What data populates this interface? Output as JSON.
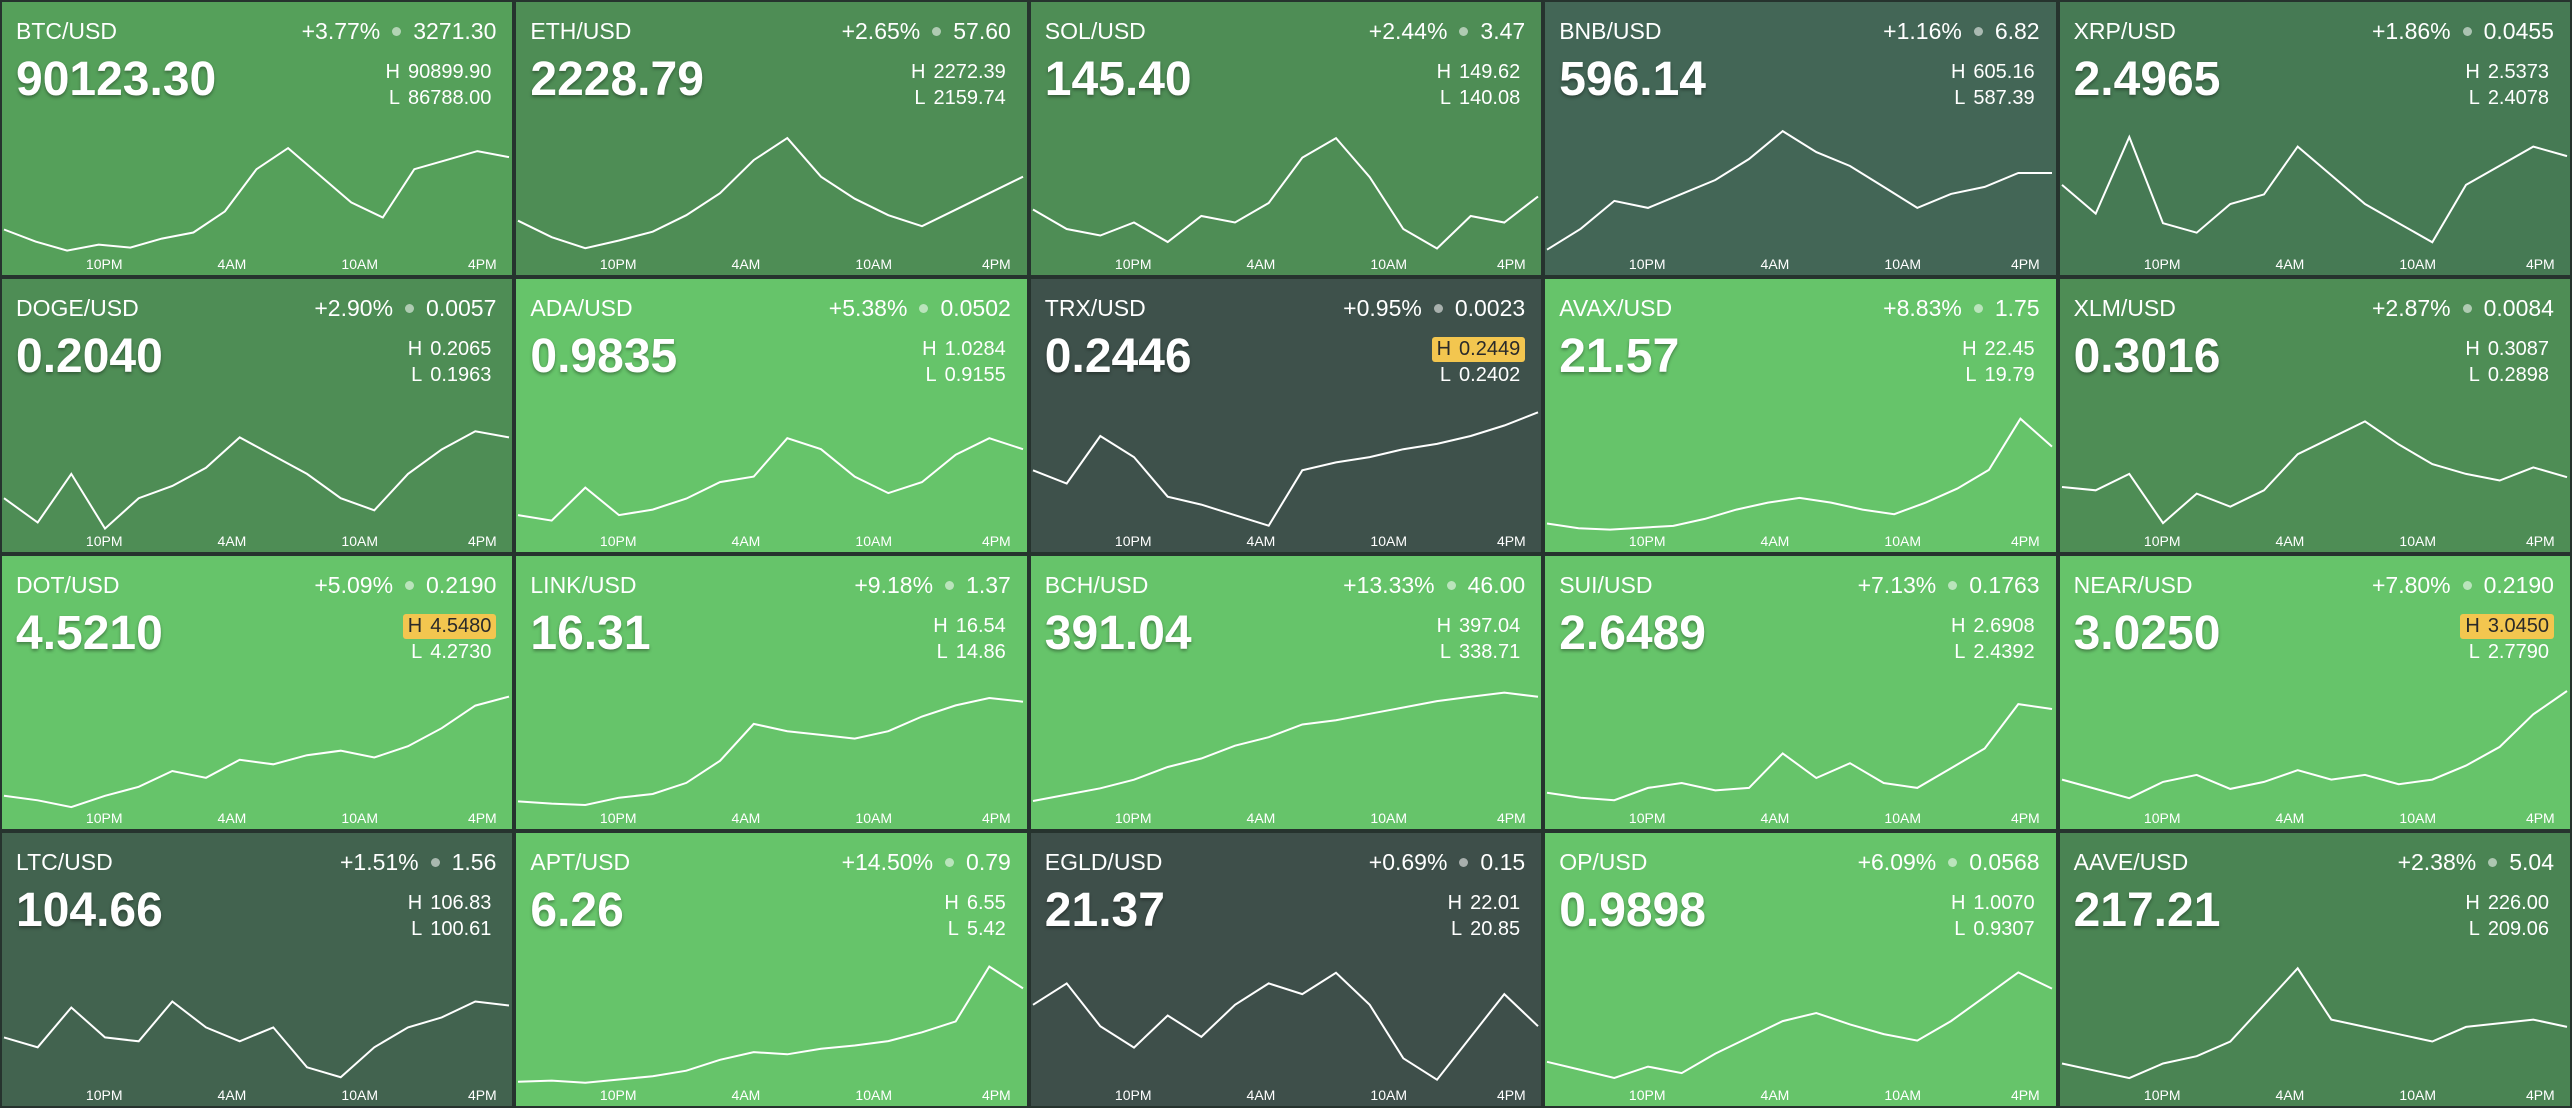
{
  "high_label": "H",
  "low_label": "L",
  "time_labels": [
    "10PM",
    "4AM",
    "10AM",
    "4PM"
  ],
  "tiles": [
    {
      "pair": "BTC/USD",
      "change_pct": "+3.77%",
      "change": "3271.30",
      "price": "90123.30",
      "high": "90899.90",
      "low": "86788.00",
      "color": "#55a05a",
      "high_highlight": false,
      "sparkline": [
        87600,
        87200,
        86900,
        87100,
        87000,
        87300,
        87500,
        88200,
        89600,
        90300,
        89400,
        88500,
        88000,
        89600,
        89900,
        90200,
        90000
      ]
    },
    {
      "pair": "ETH/USD",
      "change_pct": "+2.65%",
      "change": "57.60",
      "price": "2228.79",
      "high": "2272.39",
      "low": "2159.74",
      "color": "#4e8d55",
      "high_highlight": false,
      "sparkline": [
        2190,
        2175,
        2165,
        2172,
        2180,
        2195,
        2215,
        2245,
        2265,
        2230,
        2210,
        2195,
        2185,
        2200,
        2215,
        2230
      ]
    },
    {
      "pair": "SOL/USD",
      "change_pct": "+2.44%",
      "change": "3.47",
      "price": "145.40",
      "high": "149.62",
      "low": "140.08",
      "color": "#4e8d55",
      "high_highlight": false,
      "sparkline": [
        143.5,
        142,
        141.5,
        142.5,
        141,
        143,
        142.5,
        144,
        147.5,
        149,
        146,
        142,
        140.5,
        143,
        142.5,
        144.5
      ]
    },
    {
      "pair": "BNB/USD",
      "change_pct": "+1.16%",
      "change": "6.82",
      "price": "596.14",
      "high": "605.16",
      "low": "587.39",
      "color": "#436656",
      "high_highlight": false,
      "sparkline": [
        588,
        591,
        595,
        594,
        596,
        598,
        601,
        605,
        602,
        600,
        597,
        594,
        596,
        597,
        599,
        599
      ]
    },
    {
      "pair": "XRP/USD",
      "change_pct": "+1.86%",
      "change": "0.0455",
      "price": "2.4965",
      "high": "2.5373",
      "low": "2.4078",
      "color": "#467a54",
      "high_highlight": false,
      "sparkline": [
        2.48,
        2.45,
        2.53,
        2.44,
        2.43,
        2.46,
        2.47,
        2.52,
        2.49,
        2.46,
        2.44,
        2.42,
        2.48,
        2.5,
        2.52,
        2.51
      ]
    },
    {
      "pair": "DOGE/USD",
      "change_pct": "+2.90%",
      "change": "0.0057",
      "price": "0.2040",
      "high": "0.2065",
      "low": "0.1963",
      "color": "#4e8d55",
      "high_highlight": false,
      "sparkline": [
        0.199,
        0.197,
        0.201,
        0.1965,
        0.199,
        0.2,
        0.2015,
        0.204,
        0.2025,
        0.201,
        0.199,
        0.198,
        0.201,
        0.203,
        0.2045,
        0.204
      ]
    },
    {
      "pair": "ADA/USD",
      "change_pct": "+5.38%",
      "change": "0.0502",
      "price": "0.9835",
      "high": "1.0284",
      "low": "0.9155",
      "color": "#66c46a",
      "high_highlight": false,
      "sparkline": [
        0.93,
        0.925,
        0.955,
        0.93,
        0.935,
        0.945,
        0.96,
        0.965,
        1.0,
        0.99,
        0.965,
        0.95,
        0.96,
        0.985,
        1.0,
        0.99
      ]
    },
    {
      "pair": "TRX/USD",
      "change_pct": "+0.95%",
      "change": "0.0023",
      "price": "0.2446",
      "high": "0.2449",
      "low": "0.2402",
      "color": "#3e514b",
      "high_highlight": true,
      "sparkline": [
        0.2425,
        0.242,
        0.2438,
        0.243,
        0.2415,
        0.2412,
        0.2408,
        0.2404,
        0.2425,
        0.2428,
        0.243,
        0.2433,
        0.2435,
        0.2438,
        0.2442,
        0.2447
      ]
    },
    {
      "pair": "AVAX/USD",
      "change_pct": "+8.83%",
      "change": "1.75",
      "price": "21.57",
      "high": "22.45",
      "low": "19.79",
      "color": "#66c46a",
      "high_highlight": false,
      "sparkline": [
        19.95,
        19.85,
        19.82,
        19.86,
        19.9,
        20.05,
        20.25,
        20.4,
        20.5,
        20.4,
        20.25,
        20.15,
        20.4,
        20.7,
        21.1,
        22.2,
        21.6
      ]
    },
    {
      "pair": "XLM/USD",
      "change_pct": "+2.87%",
      "change": "0.0084",
      "price": "0.3016",
      "high": "0.3087",
      "low": "0.2898",
      "color": "#4e8d55",
      "high_highlight": false,
      "sparkline": [
        0.2965,
        0.296,
        0.2985,
        0.291,
        0.2955,
        0.2935,
        0.296,
        0.3015,
        0.304,
        0.3065,
        0.303,
        0.3,
        0.2985,
        0.2975,
        0.2995,
        0.298
      ]
    },
    {
      "pair": "DOT/USD",
      "change_pct": "+5.09%",
      "change": "0.2190",
      "price": "4.5210",
      "high": "4.5480",
      "low": "4.2730",
      "color": "#66c46a",
      "high_highlight": true,
      "sparkline": [
        4.3,
        4.29,
        4.275,
        4.3,
        4.32,
        4.355,
        4.34,
        4.38,
        4.37,
        4.39,
        4.4,
        4.385,
        4.41,
        4.45,
        4.5,
        4.52
      ]
    },
    {
      "pair": "LINK/USD",
      "change_pct": "+9.18%",
      "change": "1.37",
      "price": "16.31",
      "high": "16.54",
      "low": "14.86",
      "color": "#66c46a",
      "high_highlight": false,
      "sparkline": [
        14.95,
        14.92,
        14.9,
        15.0,
        15.05,
        15.2,
        15.5,
        16.0,
        15.9,
        15.85,
        15.8,
        15.9,
        16.1,
        16.25,
        16.35,
        16.3
      ]
    },
    {
      "pair": "BCH/USD",
      "change_pct": "+13.33%",
      "change": "46.00",
      "price": "391.04",
      "high": "397.04",
      "low": "338.71",
      "color": "#66c46a",
      "high_highlight": false,
      "sparkline": [
        342,
        345,
        348,
        352,
        358,
        362,
        368,
        372,
        378,
        380,
        383,
        386,
        389,
        391,
        393,
        391
      ]
    },
    {
      "pair": "SUI/USD",
      "change_pct": "+7.13%",
      "change": "0.1763",
      "price": "2.6489",
      "high": "2.6908",
      "low": "2.4392",
      "color": "#66c46a",
      "high_highlight": false,
      "sparkline": [
        2.47,
        2.46,
        2.455,
        2.48,
        2.49,
        2.475,
        2.48,
        2.55,
        2.5,
        2.53,
        2.49,
        2.48,
        2.52,
        2.56,
        2.65,
        2.64
      ]
    },
    {
      "pair": "NEAR/USD",
      "change_pct": "+7.80%",
      "change": "0.2190",
      "price": "3.0250",
      "high": "3.0450",
      "low": "2.7790",
      "color": "#66c46a",
      "high_highlight": true,
      "sparkline": [
        2.84,
        2.82,
        2.8,
        2.835,
        2.85,
        2.82,
        2.835,
        2.86,
        2.84,
        2.85,
        2.83,
        2.84,
        2.87,
        2.91,
        2.98,
        3.03
      ]
    },
    {
      "pair": "LTC/USD",
      "change_pct": "+1.51%",
      "change": "1.56",
      "price": "104.66",
      "high": "106.83",
      "low": "100.61",
      "color": "#42634f",
      "high_highlight": false,
      "sparkline": [
        103.0,
        102.5,
        104.5,
        103.0,
        102.8,
        104.8,
        103.5,
        102.8,
        103.5,
        101.5,
        101.0,
        102.5,
        103.5,
        104.0,
        104.8,
        104.6
      ]
    },
    {
      "pair": "APT/USD",
      "change_pct": "+14.50%",
      "change": "0.79",
      "price": "6.26",
      "high": "6.55",
      "low": "5.42",
      "color": "#66c46a",
      "high_highlight": false,
      "sparkline": [
        5.45,
        5.46,
        5.44,
        5.47,
        5.5,
        5.55,
        5.65,
        5.72,
        5.7,
        5.75,
        5.78,
        5.82,
        5.9,
        6.0,
        6.5,
        6.3
      ]
    },
    {
      "pair": "EGLD/USD",
      "change_pct": "+0.69%",
      "change": "0.15",
      "price": "21.37",
      "high": "22.01",
      "low": "20.85",
      "color": "#3e4f4a",
      "high_highlight": false,
      "sparkline": [
        21.6,
        21.8,
        21.4,
        21.2,
        21.5,
        21.3,
        21.6,
        21.8,
        21.7,
        21.9,
        21.6,
        21.1,
        20.9,
        21.3,
        21.7,
        21.4
      ]
    },
    {
      "pair": "OP/USD",
      "change_pct": "+6.09%",
      "change": "0.0568",
      "price": "0.9898",
      "high": "1.0070",
      "low": "0.9307",
      "color": "#66c46a",
      "high_highlight": false,
      "sparkline": [
        0.945,
        0.94,
        0.935,
        0.942,
        0.938,
        0.95,
        0.96,
        0.97,
        0.975,
        0.968,
        0.962,
        0.958,
        0.97,
        0.985,
        1.0,
        0.99
      ]
    },
    {
      "pair": "AAVE/USD",
      "change_pct": "+2.38%",
      "change": "5.04",
      "price": "217.21",
      "high": "226.00",
      "low": "209.06",
      "color": "#4a8453",
      "high_highlight": false,
      "sparkline": [
        212,
        211,
        210,
        212,
        213,
        215,
        220,
        225,
        218,
        217,
        216,
        215,
        217,
        217.5,
        218,
        217
      ]
    }
  ]
}
